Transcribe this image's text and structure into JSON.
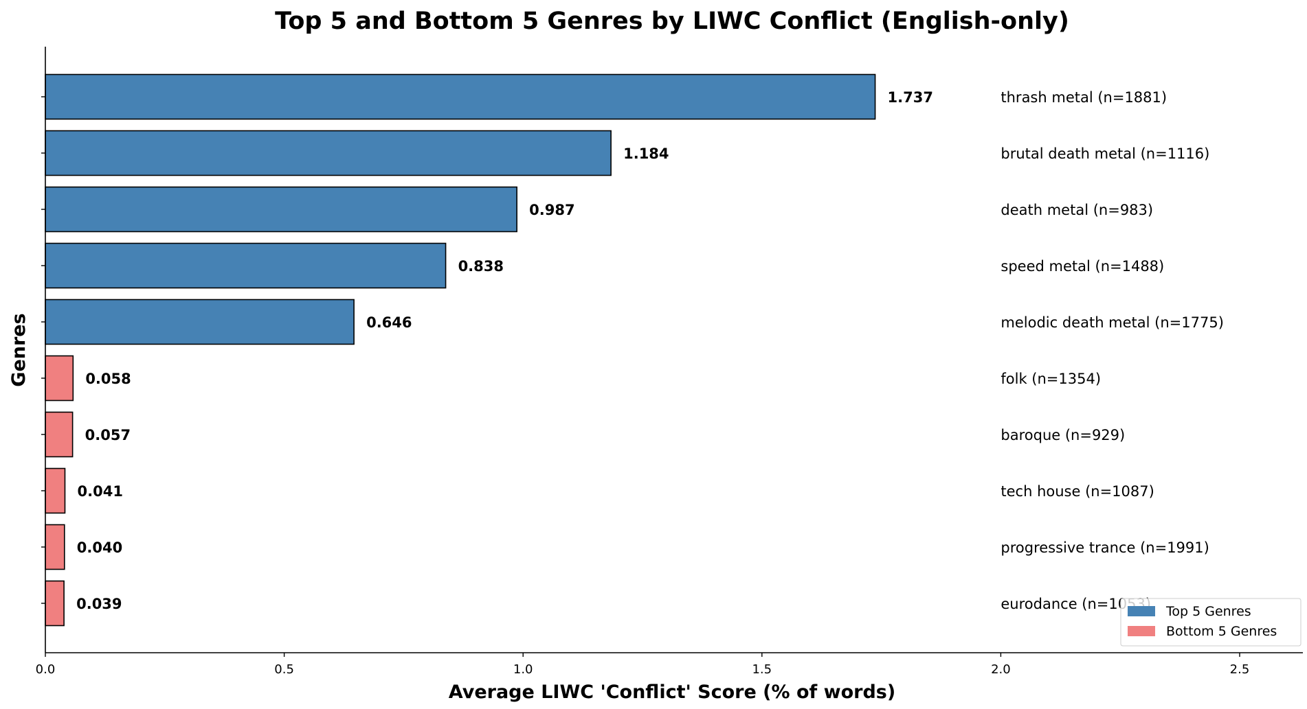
{
  "chart_data": {
    "type": "bar",
    "orientation": "horizontal",
    "title": "Top 5 and Bottom 5 Genres by LIWC Conflict (English-only)",
    "xlabel": "Average LIWC 'Conflict' Score (% of words)",
    "ylabel": "Genres",
    "xlim": [
      0,
      2.55
    ],
    "xticks": [
      0.0,
      0.5,
      1.0,
      1.5,
      2.0,
      2.5
    ],
    "xtick_labels": [
      "0.0",
      "0.5",
      "1.0",
      "1.5",
      "2.0",
      "2.5"
    ],
    "grid": false,
    "legend_position": "bottom-right",
    "legend": [
      {
        "label": "Top 5 Genres",
        "color": "#4682b4"
      },
      {
        "label": "Bottom 5 Genres",
        "color": "#f08080"
      }
    ],
    "bars": [
      {
        "value": 1.737,
        "value_label": "1.737",
        "genre_label": "thrash metal (n=1881)",
        "group": "top"
      },
      {
        "value": 1.184,
        "value_label": "1.184",
        "genre_label": "brutal death metal (n=1116)",
        "group": "top"
      },
      {
        "value": 0.987,
        "value_label": "0.987",
        "genre_label": "death metal (n=983)",
        "group": "top"
      },
      {
        "value": 0.838,
        "value_label": "0.838",
        "genre_label": "speed metal (n=1488)",
        "group": "top"
      },
      {
        "value": 0.646,
        "value_label": "0.646",
        "genre_label": "melodic death metal (n=1775)",
        "group": "top"
      },
      {
        "value": 0.058,
        "value_label": "0.058",
        "genre_label": "folk (n=1354)",
        "group": "bottom"
      },
      {
        "value": 0.057,
        "value_label": "0.057",
        "genre_label": "baroque (n=929)",
        "group": "bottom"
      },
      {
        "value": 0.041,
        "value_label": "0.041",
        "genre_label": "tech house (n=1087)",
        "group": "bottom"
      },
      {
        "value": 0.04,
        "value_label": "0.040",
        "genre_label": "progressive trance (n=1991)",
        "group": "bottom"
      },
      {
        "value": 0.039,
        "value_label": "0.039",
        "genre_label": "eurodance (n=1053)",
        "group": "bottom"
      }
    ],
    "colors": {
      "top": "#4682b4",
      "bottom": "#f08080",
      "edge": "#000000"
    }
  }
}
